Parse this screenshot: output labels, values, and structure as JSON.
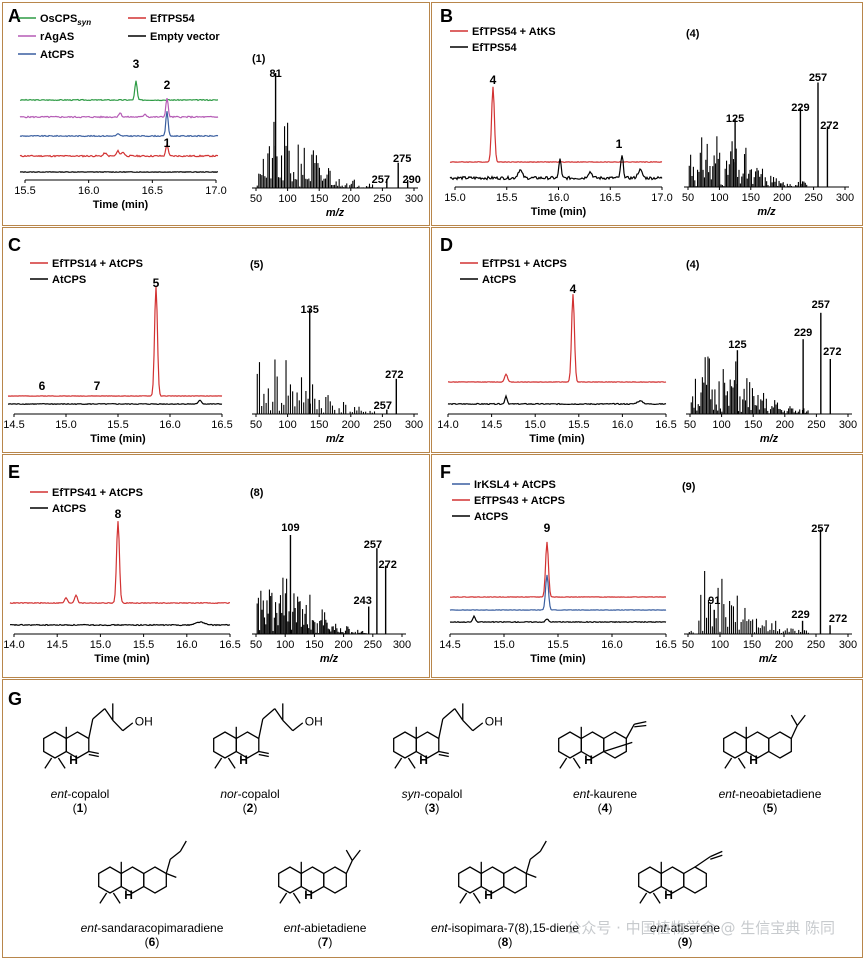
{
  "panels": [
    {
      "letter": "A",
      "compound_tag": "(1)",
      "legend": [
        {
          "label": "OsCPS",
          "sub": "syn",
          "color": "#2e9b45"
        },
        {
          "label": "rAgAS",
          "color": "#b55bb5"
        },
        {
          "label": "AtCPS",
          "color": "#3a5fa0"
        },
        {
          "label": "EfTPS54",
          "color": "#d23232"
        },
        {
          "label": "Empty vector",
          "color": "#000000"
        }
      ],
      "peak_labels": [
        "3",
        "2",
        "1"
      ],
      "ms_labels": [
        "81",
        "275",
        "257",
        "290"
      ]
    },
    {
      "letter": "B",
      "compound_tag": "(4)",
      "legend": [
        {
          "label": "EfTPS54 + AtKS",
          "color": "#d23232"
        },
        {
          "label": "EfTPS54",
          "color": "#000000"
        }
      ],
      "peak_labels": [
        "4",
        "1"
      ],
      "ms_labels": [
        "125",
        "229",
        "257",
        "272"
      ]
    },
    {
      "letter": "C",
      "compound_tag": "(5)",
      "legend": [
        {
          "label": "EfTPS14 + AtCPS",
          "color": "#d23232"
        },
        {
          "label": "AtCPS",
          "color": "#000000"
        }
      ],
      "peak_labels": [
        "5",
        "6",
        "7"
      ],
      "ms_labels": [
        "135",
        "272",
        "257"
      ]
    },
    {
      "letter": "D",
      "compound_tag": "(4)",
      "legend": [
        {
          "label": "EfTPS1 + AtCPS",
          "color": "#d23232"
        },
        {
          "label": "AtCPS",
          "color": "#000000"
        }
      ],
      "peak_labels": [
        "4"
      ],
      "ms_labels": [
        "125",
        "229",
        "257",
        "272"
      ]
    },
    {
      "letter": "E",
      "compound_tag": "(8)",
      "legend": [
        {
          "label": "EfTPS41 + AtCPS",
          "color": "#d23232"
        },
        {
          "label": "AtCPS",
          "color": "#000000"
        }
      ],
      "peak_labels": [
        "8"
      ],
      "ms_labels": [
        "109",
        "257",
        "272",
        "243"
      ]
    },
    {
      "letter": "F",
      "compound_tag": "(9)",
      "legend": [
        {
          "label": "IrKSL4 + AtCPS",
          "color": "#3a5fa0"
        },
        {
          "label": "EfTPS43 + AtCPS",
          "color": "#d23232"
        },
        {
          "label": "AtCPS",
          "color": "#000000"
        }
      ],
      "peak_labels": [
        "9"
      ],
      "ms_labels": [
        "257",
        "91",
        "229",
        "272"
      ]
    }
  ],
  "axes": {
    "time_label": "Time (min)",
    "mz_label": "m/z",
    "time_ticks_A": [
      "15.5",
      "16.0",
      "16.5",
      "17.0"
    ],
    "time_ticks_B": [
      "15.0",
      "15.5",
      "16.0",
      "16.5",
      "17.0"
    ],
    "time_ticks_C": [
      "14.5",
      "15.0",
      "15.5",
      "16.0",
      "16.5"
    ],
    "time_ticks_D": [
      "14.0",
      "14.5",
      "15.0",
      "15.5",
      "16.0",
      "16.5"
    ],
    "time_ticks_E": [
      "14.0",
      "14.5",
      "15.0",
      "15.5",
      "16.0",
      "16.5"
    ],
    "time_ticks_F": [
      "14.5",
      "15.0",
      "15.5",
      "16.0",
      "16.5"
    ],
    "mz_ticks": [
      "50",
      "100",
      "150",
      "200",
      "250",
      "300"
    ]
  },
  "panel_g": {
    "letter": "G",
    "compounds": [
      {
        "prefix": "ent",
        "name": "-copalol",
        "num": "1"
      },
      {
        "prefix": "nor",
        "name": "-copalol",
        "num": "2"
      },
      {
        "prefix": "syn",
        "name": "-copalol",
        "num": "3"
      },
      {
        "prefix": "ent",
        "name": "-kaurene",
        "num": "4"
      },
      {
        "prefix": "ent",
        "name": "-neoabietadiene",
        "num": "5"
      },
      {
        "prefix": "ent",
        "name": "-sandaracopimaradiene",
        "num": "6"
      },
      {
        "prefix": "ent",
        "name": "-abietadiene",
        "num": "7"
      },
      {
        "prefix": "ent",
        "name": "-isopimara-7(8),15-diene",
        "num": "8"
      },
      {
        "prefix": "ent",
        "name": "-atiserene",
        "num": "9"
      }
    ],
    "atom_labels": {
      "oh": "OH",
      "h": "H"
    }
  },
  "watermark": "公众号 · 中国植物学会 @ 生信宝典 陈同"
}
